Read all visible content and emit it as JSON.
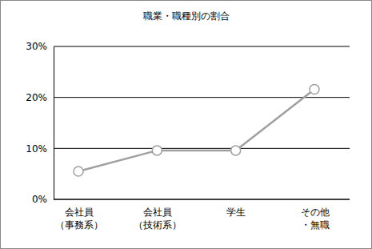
{
  "chart_data": {
    "type": "line",
    "title": "職業・職種別の割合",
    "categories": [
      "会社員\n（事務系）",
      "会社員\n（技術系）",
      "学生",
      "その他\n・無職"
    ],
    "values": [
      5.5,
      9.6,
      9.6,
      21.6
    ],
    "color": "#a0a0a0",
    "marker": "circle",
    "ylim": [
      0,
      30
    ],
    "yticks": [
      {
        "value": 0,
        "label": "0%"
      },
      {
        "value": 10,
        "label": "10%"
      },
      {
        "value": 20,
        "label": "20%"
      },
      {
        "value": 30,
        "label": "30%"
      }
    ],
    "grid": true
  }
}
